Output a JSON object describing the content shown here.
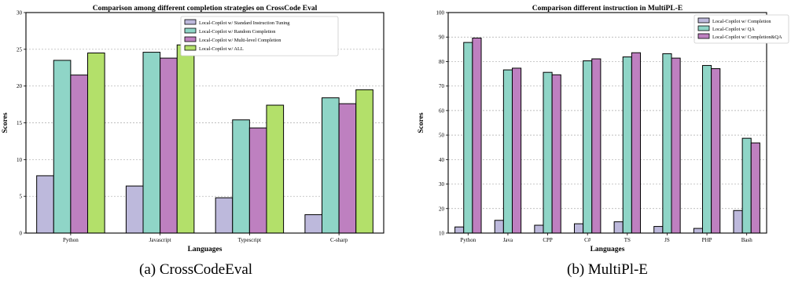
{
  "colors": {
    "lavender": "#bdb9dc",
    "teal": "#8fd5c7",
    "purple": "#be80c0",
    "green": "#b3e06a",
    "edge": "#000000",
    "grid": "#aaaaaa"
  },
  "captions": {
    "left": "(a)  CrossCodeEval",
    "right": "(b)  MultiPl-E"
  },
  "chart_data": [
    {
      "type": "bar",
      "title": "Comparison among different completion strategies on CrossCode Eval",
      "xlabel": "Languages",
      "ylabel": "Scores",
      "ylim": [
        0,
        30
      ],
      "yticks": [
        "0",
        "5",
        "10",
        "15",
        "20",
        "25",
        "30"
      ],
      "grid": "horizontal dashed",
      "legend_position": "top-center",
      "categories": [
        "Python",
        "Javascript",
        "Typescript",
        "C-sharp"
      ],
      "series": [
        {
          "name": "Local-Copilot w/ Standard Instruction Tuning",
          "color": "#bdb9dc",
          "values": [
            7.8,
            6.4,
            4.8,
            2.5
          ]
        },
        {
          "name": "Local-Copilot w/ Random Completion",
          "color": "#8fd5c7",
          "values": [
            23.5,
            24.6,
            15.4,
            18.4
          ]
        },
        {
          "name": "Local-Copilot w/ Multi-level Completion",
          "color": "#be80c0",
          "values": [
            21.5,
            23.8,
            14.3,
            17.6
          ]
        },
        {
          "name": "Local-Copilot w/ ALL",
          "color": "#b3e06a",
          "values": [
            24.5,
            25.6,
            17.4,
            19.5
          ]
        }
      ]
    },
    {
      "type": "bar",
      "title": "Comparison different instruction in MultiPL-E",
      "xlabel": "Languages",
      "ylabel": "Scores",
      "ylim": [
        10,
        100
      ],
      "yticks": [
        "10",
        "20",
        "30",
        "40",
        "50",
        "60",
        "70",
        "80",
        "90",
        "100"
      ],
      "grid": "horizontal dashed",
      "legend_position": "top-right",
      "categories": [
        "Python",
        "Java",
        "CPP",
        "C#",
        "TS",
        "JS",
        "PHP",
        "Bash"
      ],
      "series": [
        {
          "name": "Local-Copilot w/ Completion",
          "color": "#bdb9dc",
          "values": [
            12.5,
            15.2,
            13.2,
            13.8,
            14.6,
            12.7,
            11.9,
            19.2
          ]
        },
        {
          "name": "Local-Copilot w/ QA",
          "color": "#8fd5c7",
          "values": [
            87.8,
            76.6,
            75.6,
            80.3,
            81.9,
            83.2,
            78.4,
            48.7
          ]
        },
        {
          "name": "Local-Copilot w/ Completion&QA",
          "color": "#be80c0",
          "values": [
            89.6,
            77.3,
            74.6,
            81.1,
            83.6,
            81.4,
            77.1,
            46.8
          ]
        }
      ]
    }
  ]
}
